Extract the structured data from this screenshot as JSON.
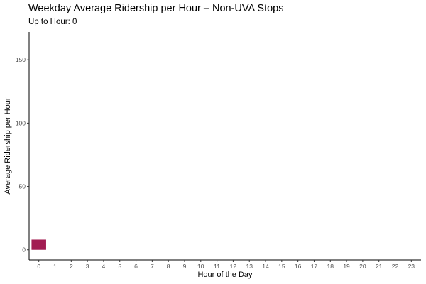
{
  "chart_data": {
    "type": "bar",
    "title": "Weekday Average Ridership per Hour – Non-UVA Stops",
    "subtitle": "Up to Hour: 0",
    "xlabel": "Hour of the Day",
    "ylabel": "Average Ridership per Hour",
    "categories": [
      "0",
      "1",
      "2",
      "3",
      "4",
      "5",
      "6",
      "7",
      "8",
      "9",
      "10",
      "11",
      "12",
      "13",
      "14",
      "15",
      "16",
      "17",
      "18",
      "19",
      "20",
      "21",
      "22",
      "23"
    ],
    "values": [
      8,
      null,
      null,
      null,
      null,
      null,
      null,
      null,
      null,
      null,
      null,
      null,
      null,
      null,
      null,
      null,
      null,
      null,
      null,
      null,
      null,
      null,
      null,
      null
    ],
    "ylim": [
      -8,
      172
    ],
    "yticks": [
      0,
      50,
      100,
      150
    ],
    "bar_color": "#a21c52",
    "grid": false
  }
}
